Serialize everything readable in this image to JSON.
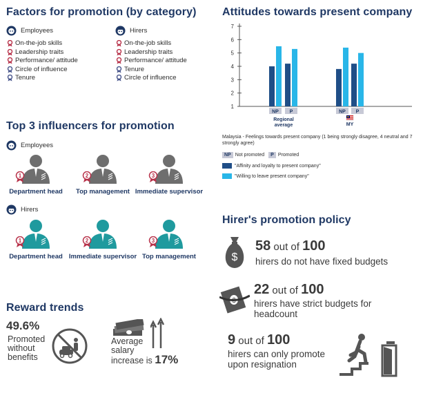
{
  "colors": {
    "navy": "#1f3864",
    "dark_blue": "#1f4e87",
    "light_blue": "#29b6e8",
    "grey_person": "#6e6e6e",
    "teal_person": "#1f9a9e",
    "ribbon_red": "#b8324a",
    "ribbon_blue": "#46538a"
  },
  "factors": {
    "title": "Factors for promotion (by category)",
    "employees": {
      "label": "Employees",
      "icon": "employee-avatar-icon",
      "items": [
        {
          "label": "On-the-job skills",
          "ribbon": "red"
        },
        {
          "label": "Leadership traits",
          "ribbon": "red"
        },
        {
          "label": "Performance/ attitude",
          "ribbon": "red"
        },
        {
          "label": "Circle of influence",
          "ribbon": "blue"
        },
        {
          "label": "Tenure",
          "ribbon": "blue"
        }
      ]
    },
    "hirers": {
      "label": "Hirers",
      "icon": "hirer-avatar-icon",
      "items": [
        {
          "label": "On-the-job skills",
          "ribbon": "red"
        },
        {
          "label": "Leadership traits",
          "ribbon": "red"
        },
        {
          "label": "Performance/ attitude",
          "ribbon": "red"
        },
        {
          "label": "Tenure",
          "ribbon": "blue"
        },
        {
          "label": "Circle of influence",
          "ribbon": "blue"
        }
      ]
    }
  },
  "influencers": {
    "title": "Top 3  influencers for promotion",
    "employees": {
      "label": "Employees",
      "people": [
        {
          "rank": "1",
          "label": "Department head"
        },
        {
          "rank": "2",
          "label": "Top management"
        },
        {
          "rank": "3",
          "label": "Immediate supervisor"
        }
      ]
    },
    "hirers": {
      "label": "Hirers",
      "people": [
        {
          "rank": "1",
          "label": "Department head"
        },
        {
          "rank": "2",
          "label": "Immediate supervisor"
        },
        {
          "rank": "3",
          "label": "Top management"
        }
      ]
    }
  },
  "rewards": {
    "title": "Reward trends",
    "promoted_pct": "49.6%",
    "promoted_lines": [
      "Promoted",
      "without",
      "benefits"
    ],
    "salary_lines": [
      "Average",
      "salary",
      "increase is"
    ],
    "salary_pct": "17%"
  },
  "attitudes": {
    "title": "Attitudes towards present company",
    "caption": "Malaysia - Feelings towards present company (1 being strongly disagree, 4 neutral and 7 strongly agree)",
    "legend": {
      "np_tag": "NP",
      "np_text": "Not promoted",
      "p_tag": "P",
      "p_text": "Promoted",
      "series": [
        {
          "name": "\"Affinity and loyalty to present company\"",
          "color": "#1f4e87"
        },
        {
          "name": "\"Willing to leave present company\"",
          "color": "#29b6e8"
        }
      ]
    }
  },
  "chart_data": {
    "type": "bar",
    "title": "Attitudes towards present company",
    "groups": [
      {
        "label": "Regional average",
        "subcategories": [
          "NP",
          "P"
        ]
      },
      {
        "label": "MY",
        "subcategories": [
          "NP",
          "P"
        ],
        "flag": "malaysia-flag-icon"
      }
    ],
    "series": [
      {
        "name": "\"Affinity and loyalty to present company\"",
        "color": "#1f4e87",
        "values": [
          4.0,
          4.2,
          3.8,
          4.2
        ]
      },
      {
        "name": "\"Willing to leave present company\"",
        "color": "#29b6e8",
        "values": [
          5.5,
          5.3,
          5.4,
          5.0
        ]
      }
    ],
    "ylim": [
      1,
      7
    ],
    "yticks": [
      "1",
      "2",
      "3",
      "4",
      "5",
      "6",
      "7"
    ],
    "grid": false
  },
  "policy": {
    "title": "Hirer's promotion policy",
    "stats": [
      {
        "num": "58",
        "mid": " out of ",
        "den": "100",
        "lines": [
          "hirers do not have fixed budgets"
        ],
        "icon": "money-bag-icon"
      },
      {
        "num": "22",
        "mid": " out of ",
        "den": "100",
        "lines": [
          "hirers  have strict budgets for",
          "headcount"
        ],
        "icon": "tied-money-icon"
      },
      {
        "num": "9",
        "mid": " out of ",
        "den": "100",
        "lines": [
          "hirers  can only promote",
          "upon resignation"
        ],
        "icon": "exit-stairs-icon"
      }
    ]
  }
}
